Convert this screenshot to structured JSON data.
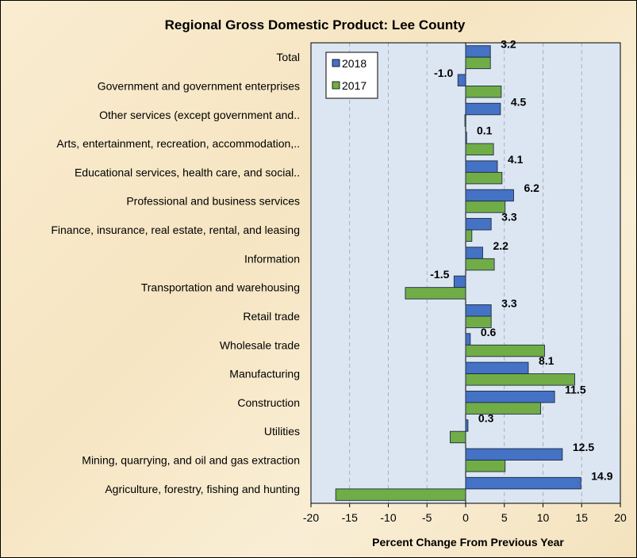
{
  "colors": {
    "series_2018": "#4472c4",
    "series_2017": "#70ad47",
    "plot_background": "#dce6f2",
    "gridline": "#9aa3b0"
  },
  "chart_data": {
    "type": "bar",
    "orientation": "horizontal",
    "title": "Regional Gross Domestic Product: Lee County",
    "xlabel": "Percent Change From Previous Year",
    "ylabel": "",
    "xlim": [
      -20,
      20
    ],
    "xticks": [
      -20,
      -15,
      -10,
      -5,
      0,
      5,
      10,
      15,
      20
    ],
    "grid": "vertical dashed",
    "legend_position": "top-left",
    "categories": [
      "Total",
      "Government and government enterprises",
      "Other services (except government and..",
      "Arts, entertainment, recreation, accommodation,..",
      "Educational services, health care, and social..",
      "Professional and business services",
      "Finance, insurance, real estate, rental, and leasing",
      "Information",
      "Transportation and warehousing",
      "Retail trade",
      "Wholesale trade",
      "Manufacturing",
      "Construction",
      "Utilities",
      "Mining, quarrying, and oil and gas extraction",
      "Agriculture, forestry, fishing and hunting"
    ],
    "series": [
      {
        "name": "2018",
        "values": [
          3.2,
          -1.0,
          4.5,
          0.1,
          4.1,
          6.2,
          3.3,
          2.2,
          -1.5,
          3.3,
          0.6,
          8.1,
          11.5,
          0.3,
          12.5,
          14.9
        ],
        "labels": [
          "3.2",
          "-1.0",
          "4.5",
          "0.1",
          "4.1",
          "6.2",
          "3.3",
          "2.2",
          "-1.5",
          "3.3",
          "0.6",
          "8.1",
          "11.5",
          "0.3",
          "12.5",
          "14.9"
        ]
      },
      {
        "name": "2017",
        "values": [
          3.2,
          4.6,
          -0.1,
          3.6,
          4.7,
          5.1,
          0.8,
          3.7,
          -7.8,
          3.3,
          10.2,
          14.1,
          9.7,
          -2.0,
          5.1,
          -16.8
        ]
      }
    ]
  }
}
